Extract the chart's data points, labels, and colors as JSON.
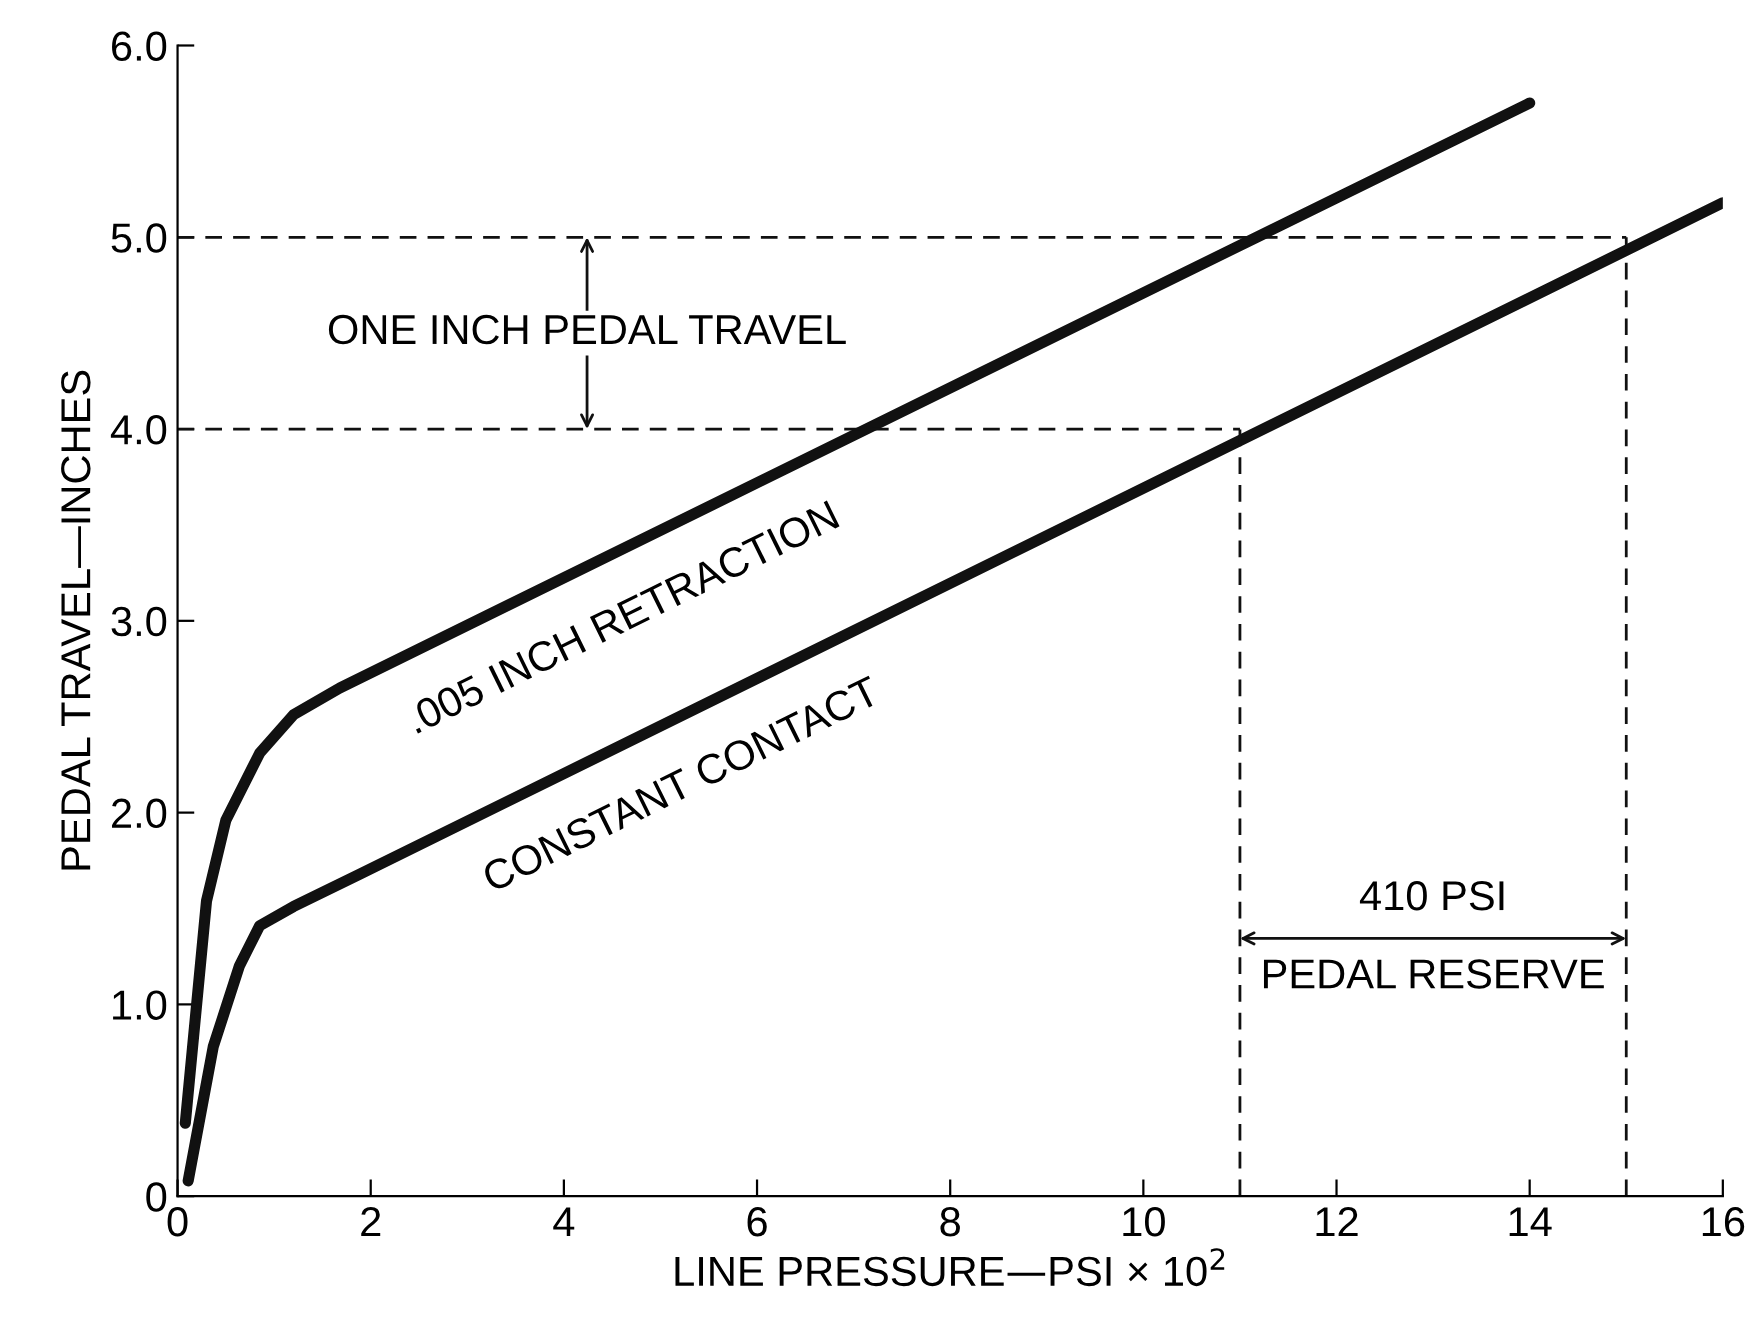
{
  "chart_data": {
    "type": "line",
    "xlabel": "LINE PRESSURE—PSI × 10$^{2}$",
    "ylabel": "PEDAL TRAVEL—INCHES",
    "xlim": [
      0,
      16
    ],
    "ylim": [
      0,
      6
    ],
    "xticks": [
      0,
      2,
      4,
      6,
      8,
      10,
      12,
      14,
      16
    ],
    "yticks": [
      0,
      {
        "value": 1,
        "label": "1.0"
      },
      {
        "value": 2,
        "label": "2.0"
      },
      {
        "value": 3,
        "label": "3.0"
      },
      {
        "value": 4,
        "label": "4.0"
      },
      {
        "value": 5,
        "label": "5.0"
      },
      {
        "value": 6,
        "label": "6.0"
      }
    ],
    "legend": false,
    "marker": "none",
    "line_style": "solid",
    "series": [
      {
        "name": ".005 INCH RETRACTION",
        "color": "#111111",
        "x": [
          0.08,
          0.3,
          0.5,
          0.85,
          1.2,
          1.68,
          14.0
        ],
        "values": [
          0.38,
          1.54,
          1.96,
          2.31,
          2.51,
          2.65,
          5.7
        ]
      },
      {
        "name": "CONSTANT CONTACT",
        "color": "#111111",
        "x": [
          0.11,
          0.37,
          0.64,
          0.85,
          1.2,
          1.89,
          16.0
        ],
        "values": [
          0.08,
          0.78,
          1.2,
          1.41,
          1.51,
          1.68,
          5.18
        ]
      },
      {
        "color": "#111111",
        "line_style": "dashed",
        "x": [
          0,
          11
        ],
        "values": [
          4,
          4
        ]
      },
      {
        "color": "#111111",
        "line_style": "dashed",
        "x": [
          0,
          15
        ],
        "values": [
          5,
          5
        ]
      },
      {
        "color": "#111111",
        "line_style": "dashed",
        "x": [
          11,
          11
        ],
        "values": [
          0,
          4
        ]
      },
      {
        "color": "#111111",
        "line_style": "dashed",
        "x": [
          15,
          15
        ],
        "values": [
          0,
          5
        ]
      }
    ],
    "annotations": [
      "ONE INCH PEDAL TRAVEL",
      "410 PSI",
      "PEDAL RESERVE"
    ]
  }
}
